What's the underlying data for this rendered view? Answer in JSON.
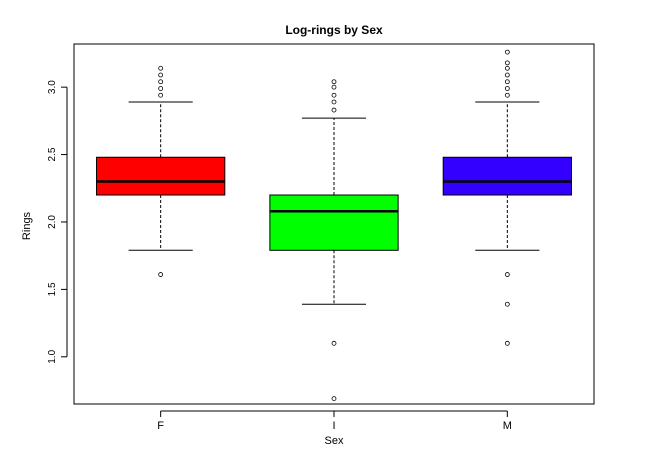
{
  "chart_data": {
    "type": "boxplot",
    "title": "Log-rings by Sex",
    "xlabel": "Sex",
    "ylabel": "Rings",
    "ylim": [
      0.65,
      3.32
    ],
    "yticks": [
      "1.0",
      "1.5",
      "2.0",
      "2.5",
      "3.0"
    ],
    "categories": [
      "F",
      "I",
      "M"
    ],
    "boxes": [
      {
        "category": "F",
        "color": "#ff0000",
        "whisker_low": 1.79,
        "q1": 2.2,
        "median": 2.3,
        "q3": 2.48,
        "whisker_high": 2.89,
        "outliers": [
          1.61,
          2.94,
          2.99,
          3.04,
          3.09,
          3.14
        ]
      },
      {
        "category": "I",
        "color": "#00ff00",
        "whisker_low": 1.39,
        "q1": 1.79,
        "median": 2.08,
        "q3": 2.2,
        "whisker_high": 2.77,
        "outliers": [
          0.69,
          1.1,
          2.83,
          2.89,
          2.94,
          3.0,
          3.04
        ]
      },
      {
        "category": "M",
        "color": "#3300ff",
        "whisker_low": 1.79,
        "q1": 2.2,
        "median": 2.3,
        "q3": 2.48,
        "whisker_high": 2.89,
        "outliers": [
          1.1,
          1.39,
          1.61,
          2.94,
          2.99,
          3.04,
          3.09,
          3.14,
          3.18,
          3.26
        ]
      }
    ]
  }
}
